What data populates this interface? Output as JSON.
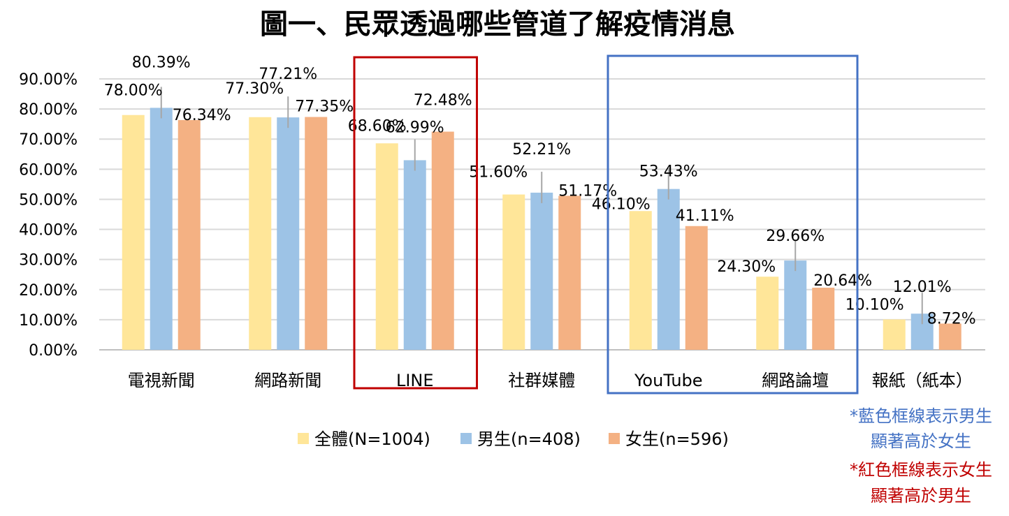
{
  "chart_data": {
    "type": "bar",
    "title": "圖一、民眾透過哪些管道了解疫情消息",
    "categories": [
      "電視新聞",
      "網路新聞",
      "LINE",
      "社群媒體",
      "YouTube",
      "網路論壇",
      "報紙（紙本）"
    ],
    "series": [
      {
        "name": "全體(N=1004)",
        "color": "#FFE699",
        "values": [
          78.0,
          77.3,
          68.6,
          51.6,
          46.1,
          24.3,
          10.1
        ]
      },
      {
        "name": "男生(n=408)",
        "color": "#9DC3E6",
        "values": [
          80.39,
          77.21,
          62.99,
          52.21,
          53.43,
          29.66,
          12.01
        ]
      },
      {
        "name": "女生(n=596)",
        "color": "#F4B183",
        "values": [
          76.34,
          77.35,
          72.48,
          51.17,
          41.11,
          20.64,
          8.72
        ]
      }
    ],
    "ylim": [
      0,
      90
    ],
    "yticks": [
      "0.00%",
      "10.00%",
      "20.00%",
      "30.00%",
      "40.00%",
      "50.00%",
      "60.00%",
      "70.00%",
      "80.00%",
      "90.00%"
    ],
    "value_suffix": "%",
    "grid": true,
    "legend_position": "bottom",
    "highlights": [
      {
        "category": "LINE",
        "color": "#C00000"
      },
      {
        "category": "YouTube",
        "color": "#4472C4"
      },
      {
        "category": "網路論壇",
        "color": "#4472C4"
      }
    ],
    "notes": [
      {
        "lines": [
          "*藍色框線表示男生",
          "顯著高於女生"
        ],
        "color": "#4472C4"
      },
      {
        "lines": [
          "*紅色框線表示女生",
          "顯著高於男生"
        ],
        "color": "#C00000"
      }
    ]
  }
}
